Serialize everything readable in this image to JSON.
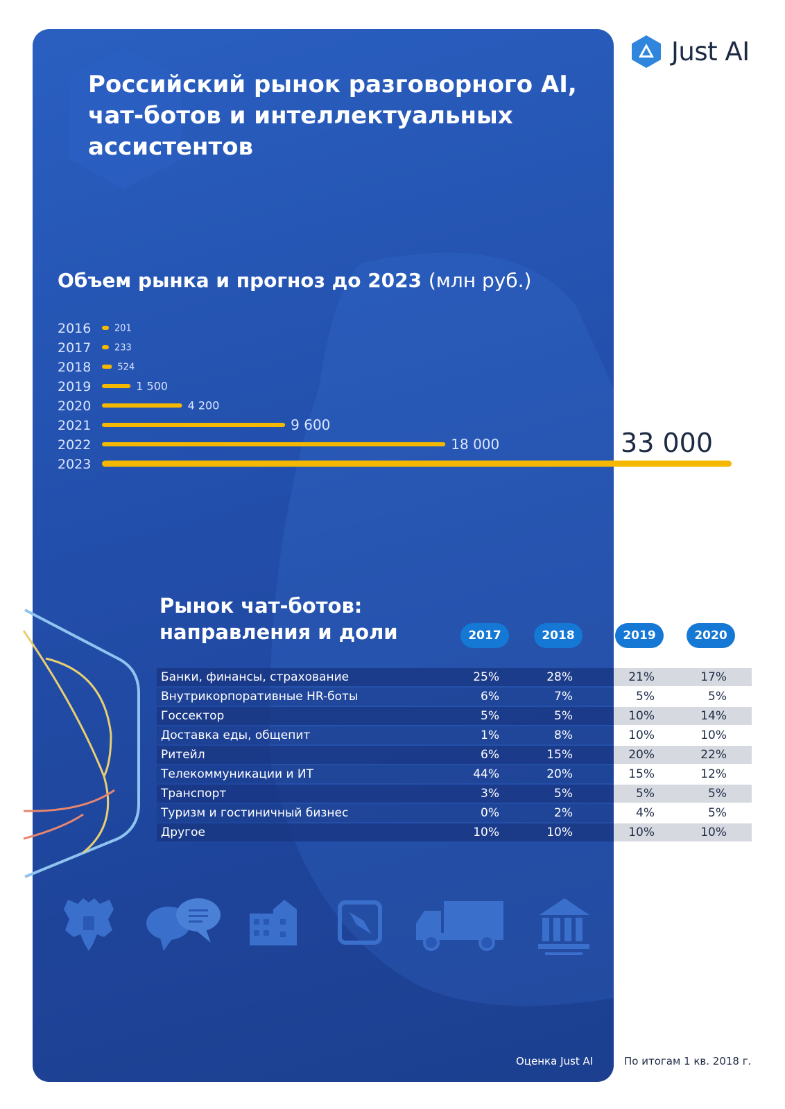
{
  "brand": {
    "name": "Just AI"
  },
  "title": "Российский рынок разговорного AI,\nчат-ботов и интеллектуальных\nассистентов",
  "market_section": {
    "title": "Объем рынка и прогноз до 2023",
    "unit": "(млн руб.)"
  },
  "share_section": {
    "title": "Рынок чат-ботов:\nнаправления и доли"
  },
  "chart_data": [
    {
      "type": "bar",
      "orientation": "horizontal",
      "title": "Объем рынка и прогноз до 2023 (млн руб.)",
      "categories": [
        "2016",
        "2017",
        "2018",
        "2019",
        "2020",
        "2021",
        "2022",
        "2023"
      ],
      "values": [
        201,
        233,
        524,
        1500,
        4200,
        9600,
        18000,
        33000
      ],
      "value_labels": [
        "201",
        "233",
        "524",
        "1 500",
        "4 200",
        "9 600",
        "18 000",
        "33 000"
      ],
      "bar_color": "#f5b800",
      "grid": false
    },
    {
      "type": "table",
      "title": "Рынок чат-ботов: направления и доли",
      "columns": [
        "2017",
        "2018",
        "2019",
        "2020"
      ],
      "rows": [
        {
          "label": "Банки, финансы, страхование",
          "values": [
            "25%",
            "28%",
            "21%",
            "17%"
          ]
        },
        {
          "label": "Внутрикорпоративные HR-боты",
          "values": [
            "6%",
            "7%",
            "5%",
            "5%"
          ]
        },
        {
          "label": "Госсектор",
          "values": [
            "5%",
            "5%",
            "10%",
            "14%"
          ]
        },
        {
          "label": "Доставка еды, общепит",
          "values": [
            "1%",
            "8%",
            "10%",
            "10%"
          ]
        },
        {
          "label": "Ритейл",
          "values": [
            "6%",
            "15%",
            "20%",
            "22%"
          ]
        },
        {
          "label": "Телекоммуникации и ИТ",
          "values": [
            "44%",
            "20%",
            "15%",
            "12%"
          ]
        },
        {
          "label": "Транспорт",
          "values": [
            "3%",
            "5%",
            "5%",
            "5%"
          ]
        },
        {
          "label": "Туризм и гостиничный бизнес",
          "values": [
            "0%",
            "2%",
            "4%",
            "5%"
          ]
        },
        {
          "label": "Другое",
          "values": [
            "10%",
            "10%",
            "10%",
            "10%"
          ]
        }
      ]
    }
  ],
  "footer": {
    "source": "Оценка Just AI",
    "period": "По итогам 1 кв. 2018 г."
  },
  "icons": [
    "coat-of-arms-icon",
    "chat-bubbles-icon",
    "buildings-icon",
    "compass-icon",
    "truck-icon",
    "bank-icon"
  ],
  "colors": {
    "panel": "#2350ad",
    "bar": "#f5b800",
    "pill": "#1478d4",
    "ink": "#1e2b45"
  }
}
